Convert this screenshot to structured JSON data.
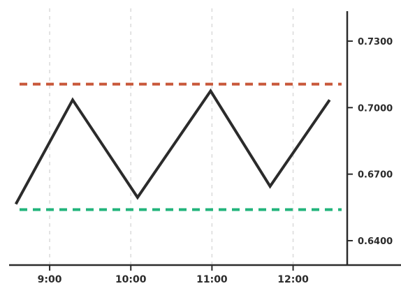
{
  "chart_data": {
    "type": "line",
    "x_unit": "time",
    "x_ticks": [
      "9:00",
      "10:00",
      "11:00",
      "12:00"
    ],
    "y_ticks": [
      "0.6400",
      "0.6700",
      "0.7000",
      "0.7300"
    ],
    "y_tick_values": [
      0.64,
      0.67,
      0.7,
      0.73
    ],
    "xlim": [
      "8:30",
      "12:40"
    ],
    "ylim": [
      0.629,
      0.7435
    ],
    "y_axis_position": "right",
    "grid": "vertical dashed lines at x ticks",
    "series": [
      {
        "color": "#2b2b2b",
        "points": [
          {
            "x": "8:35",
            "y": 0.6565
          },
          {
            "x": "9:17",
            "y": 0.7035
          },
          {
            "x": "10:05",
            "y": 0.6595
          },
          {
            "x": "10:59",
            "y": 0.7075
          },
          {
            "x": "11:43",
            "y": 0.6645
          },
          {
            "x": "12:27",
            "y": 0.7035
          }
        ]
      }
    ],
    "reference_lines": [
      {
        "y": 0.7106,
        "color": "#c8583a",
        "style": "dashed"
      },
      {
        "y": 0.654,
        "color": "#22b47b",
        "style": "dashed"
      }
    ]
  }
}
